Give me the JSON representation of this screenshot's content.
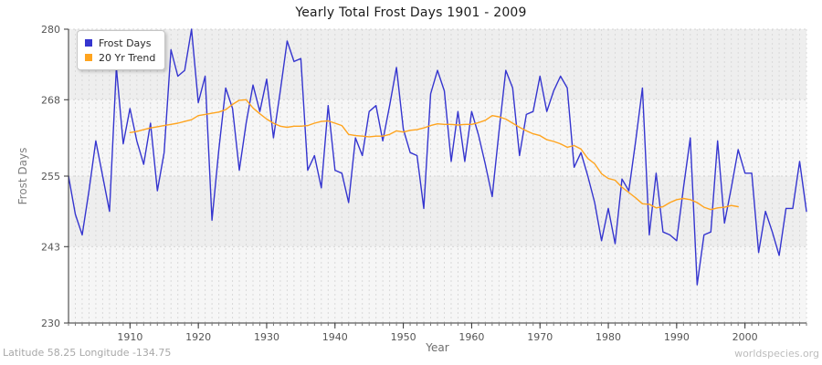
{
  "figure": {
    "title": "Yearly Total Frost Days 1901 - 2009",
    "xlabel": "Year",
    "ylabel": "Frost Days",
    "footer_left": "Latitude 58.25 Longitude -134.75",
    "footer_right": "worldspecies.org"
  },
  "chart_data": {
    "type": "line",
    "title": "Yearly Total Frost Days 1901 - 2009",
    "xlabel": "Year",
    "ylabel": "Frost Days",
    "x_start_year": 1901,
    "x_end_year": 2009,
    "ylim": [
      230,
      280
    ],
    "y_ticks": [
      280,
      268,
      255,
      243,
      230
    ],
    "x_ticks": [
      1910,
      1920,
      1930,
      1940,
      1950,
      1960,
      1970,
      1980,
      1990,
      2000
    ],
    "grid": "yearly dashed vertical lines, dashed horizontal lines at y ticks, alternating horizontal shaded bands",
    "legend_position": "top-left",
    "band_colors": [
      "#eeeeee",
      "#f6f6f6"
    ],
    "grid_color": "#d9d9d9",
    "axis_color": "#333333",
    "tick_label_color": "#555555",
    "series": [
      {
        "name": "Frost Days",
        "color": "#3535cf",
        "start_year": 1901,
        "values": [
          255,
          248.5,
          245,
          252.5,
          261,
          255,
          249,
          273.5,
          260.5,
          266.5,
          261,
          257,
          264,
          252.5,
          259,
          276.5,
          272,
          273,
          280,
          267.5,
          272,
          247.5,
          259.5,
          270,
          266.5,
          256,
          264,
          270.5,
          266,
          271.5,
          261.5,
          269.5,
          278,
          274.5,
          275,
          256,
          258.5,
          253,
          267,
          256,
          255.5,
          250.5,
          261.5,
          258.5,
          266,
          267,
          261,
          267,
          273.5,
          263,
          259,
          258.5,
          249.5,
          269,
          273,
          269.5,
          257.5,
          266,
          257.5,
          266,
          262,
          257,
          251.5,
          262.5,
          273,
          270,
          258.5,
          265.5,
          266,
          272,
          266,
          269.5,
          272,
          270,
          256.5,
          259,
          255,
          250.5,
          244,
          249.5,
          243.5,
          254.5,
          252.5,
          261,
          270,
          245,
          255.5,
          245.5,
          245,
          244,
          253,
          261.5,
          236.5,
          245,
          245.5,
          261,
          247,
          253,
          259.5,
          255.5,
          255.5,
          242,
          249,
          245.5,
          241.5,
          249.5,
          249.5,
          257.5,
          249
        ]
      },
      {
        "name": "20 Yr Trend",
        "color": "#ffa41e",
        "start_year": 1910,
        "values": [
          262.4,
          262.6,
          262.9,
          263.2,
          263.4,
          263.6,
          263.8,
          264.0,
          264.3,
          264.6,
          265.3,
          265.5,
          265.7,
          265.9,
          266.3,
          267.2,
          267.9,
          268.0,
          266.6,
          265.6,
          264.7,
          264.0,
          263.5,
          263.3,
          263.5,
          263.5,
          263.6,
          264.0,
          264.3,
          264.4,
          264.0,
          263.6,
          262.1,
          261.9,
          261.8,
          261.7,
          261.8,
          261.8,
          262.1,
          262.7,
          262.5,
          262.8,
          262.9,
          263.2,
          263.6,
          263.9,
          263.8,
          263.8,
          263.7,
          263.8,
          263.8,
          264.1,
          264.5,
          265.3,
          265.1,
          264.7,
          264.0,
          263.3,
          262.7,
          262.2,
          261.9,
          261.2,
          260.9,
          260.5,
          259.9,
          260.2,
          259.6,
          258.0,
          257.1,
          255.4,
          254.6,
          254.3,
          253.1,
          252.2,
          251.3,
          250.3,
          250.2,
          249.6,
          249.8,
          250.5,
          251.0,
          251.2,
          251.0,
          250.5,
          249.7,
          249.3,
          249.6,
          249.7,
          250.0,
          249.8
        ]
      }
    ]
  }
}
